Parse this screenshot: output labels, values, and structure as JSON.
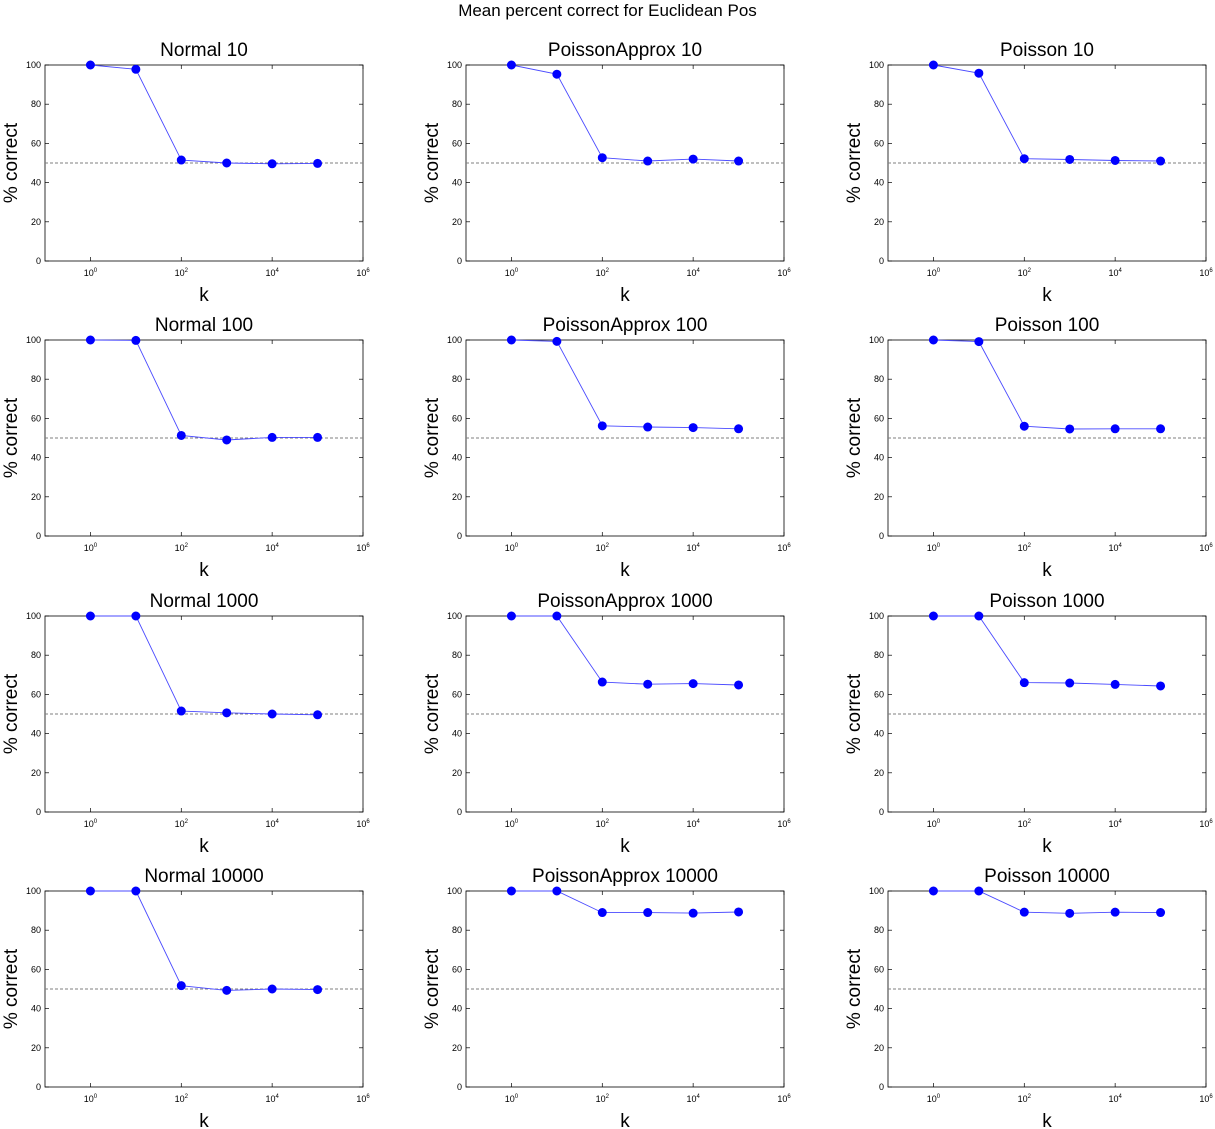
{
  "figure": {
    "title": "Mean percent correct for Euclidean Pos"
  },
  "colors": {
    "series": "#0000ff",
    "series_line": "#4a4aff",
    "reference": "#7f7f7f",
    "axes": "#000000"
  },
  "chart_data": [
    {
      "type": "line",
      "title": "Normal 10",
      "xlabel": "k",
      "ylabel": "% correct",
      "xscale": "log",
      "xlim": [
        0.1,
        1000000
      ],
      "ylim": [
        0,
        100
      ],
      "xticks": [
        {
          "base": "10",
          "exp": "0",
          "value": 1
        },
        {
          "base": "10",
          "exp": "2",
          "value": 100
        },
        {
          "base": "10",
          "exp": "4",
          "value": 10000
        },
        {
          "base": "10",
          "exp": "6",
          "value": 1000000
        }
      ],
      "yticks": [
        "0",
        "20",
        "40",
        "60",
        "80",
        "100"
      ],
      "x": [
        1,
        10,
        100,
        1000,
        10000,
        100000
      ],
      "values": [
        100,
        97.8,
        51.5,
        50,
        49.6,
        49.8
      ],
      "reference": 50
    },
    {
      "type": "line",
      "title": "PoissonApprox 10",
      "xlabel": "k",
      "ylabel": "% correct",
      "xscale": "log",
      "xlim": [
        0.1,
        1000000
      ],
      "ylim": [
        0,
        100
      ],
      "xticks": [
        {
          "base": "10",
          "exp": "0",
          "value": 1
        },
        {
          "base": "10",
          "exp": "2",
          "value": 100
        },
        {
          "base": "10",
          "exp": "4",
          "value": 10000
        },
        {
          "base": "10",
          "exp": "6",
          "value": 1000000
        }
      ],
      "yticks": [
        "0",
        "20",
        "40",
        "60",
        "80",
        "100"
      ],
      "x": [
        1,
        10,
        100,
        1000,
        10000,
        100000
      ],
      "values": [
        100,
        95.3,
        52.7,
        51,
        52,
        51
      ],
      "reference": 50
    },
    {
      "type": "line",
      "title": "Poisson 10",
      "xlabel": "k",
      "ylabel": "% correct",
      "xscale": "log",
      "xlim": [
        0.1,
        1000000
      ],
      "ylim": [
        0,
        100
      ],
      "xticks": [
        {
          "base": "10",
          "exp": "0",
          "value": 1
        },
        {
          "base": "10",
          "exp": "2",
          "value": 100
        },
        {
          "base": "10",
          "exp": "4",
          "value": 10000
        },
        {
          "base": "10",
          "exp": "6",
          "value": 1000000
        }
      ],
      "yticks": [
        "0",
        "20",
        "40",
        "60",
        "80",
        "100"
      ],
      "x": [
        1,
        10,
        100,
        1000,
        10000,
        100000
      ],
      "values": [
        100,
        95.8,
        52.2,
        51.8,
        51.3,
        51
      ],
      "reference": 50
    },
    {
      "type": "line",
      "title": "Normal 100",
      "xlabel": "k",
      "ylabel": "% correct",
      "xscale": "log",
      "xlim": [
        0.1,
        1000000
      ],
      "ylim": [
        0,
        100
      ],
      "xticks": [
        {
          "base": "10",
          "exp": "0",
          "value": 1
        },
        {
          "base": "10",
          "exp": "2",
          "value": 100
        },
        {
          "base": "10",
          "exp": "4",
          "value": 10000
        },
        {
          "base": "10",
          "exp": "6",
          "value": 1000000
        }
      ],
      "yticks": [
        "0",
        "20",
        "40",
        "60",
        "80",
        "100"
      ],
      "x": [
        1,
        10,
        100,
        1000,
        10000,
        100000
      ],
      "values": [
        100,
        99.8,
        51.3,
        49,
        50.3,
        50.3
      ],
      "reference": 50
    },
    {
      "type": "line",
      "title": "PoissonApprox 100",
      "xlabel": "k",
      "ylabel": "% correct",
      "xscale": "log",
      "xlim": [
        0.1,
        1000000
      ],
      "ylim": [
        0,
        100
      ],
      "xticks": [
        {
          "base": "10",
          "exp": "0",
          "value": 1
        },
        {
          "base": "10",
          "exp": "2",
          "value": 100
        },
        {
          "base": "10",
          "exp": "4",
          "value": 10000
        },
        {
          "base": "10",
          "exp": "6",
          "value": 1000000
        }
      ],
      "yticks": [
        "0",
        "20",
        "40",
        "60",
        "80",
        "100"
      ],
      "x": [
        1,
        10,
        100,
        1000,
        10000,
        100000
      ],
      "values": [
        100,
        99.3,
        56.2,
        55.6,
        55.3,
        54.7
      ],
      "reference": 50
    },
    {
      "type": "line",
      "title": "Poisson 100",
      "xlabel": "k",
      "ylabel": "% correct",
      "xscale": "log",
      "xlim": [
        0.1,
        1000000
      ],
      "ylim": [
        0,
        100
      ],
      "xticks": [
        {
          "base": "10",
          "exp": "0",
          "value": 1
        },
        {
          "base": "10",
          "exp": "2",
          "value": 100
        },
        {
          "base": "10",
          "exp": "4",
          "value": 10000
        },
        {
          "base": "10",
          "exp": "6",
          "value": 1000000
        }
      ],
      "yticks": [
        "0",
        "20",
        "40",
        "60",
        "80",
        "100"
      ],
      "x": [
        1,
        10,
        100,
        1000,
        10000,
        100000
      ],
      "values": [
        100,
        99.2,
        56,
        54.6,
        54.7,
        54.7
      ],
      "reference": 50
    },
    {
      "type": "line",
      "title": "Normal 1000",
      "xlabel": "k",
      "ylabel": "% correct",
      "xscale": "log",
      "xlim": [
        0.1,
        1000000
      ],
      "ylim": [
        0,
        100
      ],
      "xticks": [
        {
          "base": "10",
          "exp": "0",
          "value": 1
        },
        {
          "base": "10",
          "exp": "2",
          "value": 100
        },
        {
          "base": "10",
          "exp": "4",
          "value": 10000
        },
        {
          "base": "10",
          "exp": "6",
          "value": 1000000
        }
      ],
      "yticks": [
        "0",
        "20",
        "40",
        "60",
        "80",
        "100"
      ],
      "x": [
        1,
        10,
        100,
        1000,
        10000,
        100000
      ],
      "values": [
        100,
        100,
        51.5,
        50.6,
        50,
        49.6
      ],
      "reference": 50
    },
    {
      "type": "line",
      "title": "PoissonApprox 1000",
      "xlabel": "k",
      "ylabel": "% correct",
      "xscale": "log",
      "xlim": [
        0.1,
        1000000
      ],
      "ylim": [
        0,
        100
      ],
      "xticks": [
        {
          "base": "10",
          "exp": "0",
          "value": 1
        },
        {
          "base": "10",
          "exp": "2",
          "value": 100
        },
        {
          "base": "10",
          "exp": "4",
          "value": 10000
        },
        {
          "base": "10",
          "exp": "6",
          "value": 1000000
        }
      ],
      "yticks": [
        "0",
        "20",
        "40",
        "60",
        "80",
        "100"
      ],
      "x": [
        1,
        10,
        100,
        1000,
        10000,
        100000
      ],
      "values": [
        100,
        100,
        66.3,
        65.2,
        65.5,
        64.8
      ],
      "reference": 50
    },
    {
      "type": "line",
      "title": "Poisson 1000",
      "xlabel": "k",
      "ylabel": "% correct",
      "xscale": "log",
      "xlim": [
        0.1,
        1000000
      ],
      "ylim": [
        0,
        100
      ],
      "xticks": [
        {
          "base": "10",
          "exp": "0",
          "value": 1
        },
        {
          "base": "10",
          "exp": "2",
          "value": 100
        },
        {
          "base": "10",
          "exp": "4",
          "value": 10000
        },
        {
          "base": "10",
          "exp": "6",
          "value": 1000000
        }
      ],
      "yticks": [
        "0",
        "20",
        "40",
        "60",
        "80",
        "100"
      ],
      "x": [
        1,
        10,
        100,
        1000,
        10000,
        100000
      ],
      "values": [
        100,
        100,
        66,
        65.8,
        65.1,
        64.3
      ],
      "reference": 50
    },
    {
      "type": "line",
      "title": "Normal 10000",
      "xlabel": "k",
      "ylabel": "% correct",
      "xscale": "log",
      "xlim": [
        0.1,
        1000000
      ],
      "ylim": [
        0,
        100
      ],
      "xticks": [
        {
          "base": "10",
          "exp": "0",
          "value": 1
        },
        {
          "base": "10",
          "exp": "2",
          "value": 100
        },
        {
          "base": "10",
          "exp": "4",
          "value": 10000
        },
        {
          "base": "10",
          "exp": "6",
          "value": 1000000
        }
      ],
      "yticks": [
        "0",
        "20",
        "40",
        "60",
        "80",
        "100"
      ],
      "x": [
        1,
        10,
        100,
        1000,
        10000,
        100000
      ],
      "values": [
        100,
        100,
        51.7,
        49.3,
        50,
        49.7
      ],
      "reference": 50
    },
    {
      "type": "line",
      "title": "PoissonApprox 10000",
      "xlabel": "k",
      "ylabel": "% correct",
      "xscale": "log",
      "xlim": [
        0.1,
        1000000
      ],
      "ylim": [
        0,
        100
      ],
      "xticks": [
        {
          "base": "10",
          "exp": "0",
          "value": 1
        },
        {
          "base": "10",
          "exp": "2",
          "value": 100
        },
        {
          "base": "10",
          "exp": "4",
          "value": 10000
        },
        {
          "base": "10",
          "exp": "6",
          "value": 1000000
        }
      ],
      "yticks": [
        "0",
        "20",
        "40",
        "60",
        "80",
        "100"
      ],
      "x": [
        1,
        10,
        100,
        1000,
        10000,
        100000
      ],
      "values": [
        100,
        100,
        89,
        89,
        88.7,
        89.3
      ],
      "reference": 50
    },
    {
      "type": "line",
      "title": "Poisson 10000",
      "xlabel": "k",
      "ylabel": "% correct",
      "xscale": "log",
      "xlim": [
        0.1,
        1000000
      ],
      "ylim": [
        0,
        100
      ],
      "xticks": [
        {
          "base": "10",
          "exp": "0",
          "value": 1
        },
        {
          "base": "10",
          "exp": "2",
          "value": 100
        },
        {
          "base": "10",
          "exp": "4",
          "value": 10000
        },
        {
          "base": "10",
          "exp": "6",
          "value": 1000000
        }
      ],
      "yticks": [
        "0",
        "20",
        "40",
        "60",
        "80",
        "100"
      ],
      "x": [
        1,
        10,
        100,
        1000,
        10000,
        100000
      ],
      "values": [
        100,
        100,
        89.2,
        88.6,
        89.2,
        89
      ],
      "reference": 50
    }
  ]
}
